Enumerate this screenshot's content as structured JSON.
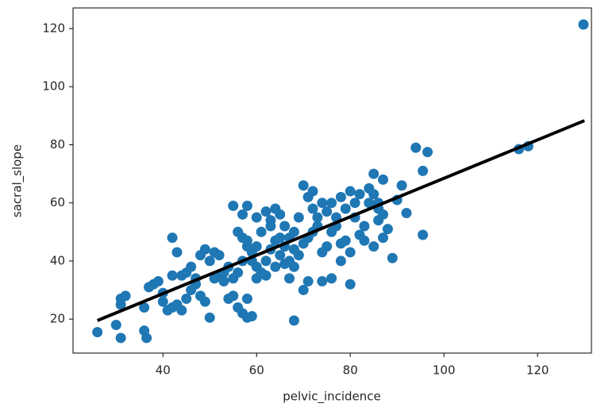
{
  "chart_data": {
    "type": "scatter",
    "xlabel": "pelvic_incidence",
    "ylabel": "sacral_slope",
    "xlim": [
      20.8,
      131.5
    ],
    "ylim": [
      8.3,
      127.1
    ],
    "xticks": [
      40,
      60,
      80,
      100,
      120
    ],
    "yticks": [
      20,
      40,
      60,
      80,
      100,
      120
    ],
    "series": [
      {
        "color": "#1f77b4",
        "x": [
          129.8,
          116,
          118,
          94,
          96.5,
          95.5,
          95.5,
          89,
          92,
          90,
          91,
          87,
          85,
          84,
          86,
          85,
          83,
          88,
          87,
          86,
          82,
          81,
          80,
          79,
          78,
          77,
          76,
          78,
          80,
          80,
          78,
          75,
          74,
          73,
          72,
          71,
          70,
          72,
          74,
          69,
          68,
          67,
          66,
          65,
          64,
          63,
          62,
          61,
          60,
          59,
          58,
          57,
          56,
          55,
          58,
          57,
          60,
          63,
          65,
          66,
          68,
          70,
          71,
          72,
          73,
          75,
          76,
          77,
          79,
          82,
          83,
          84,
          85,
          86,
          87,
          81,
          74,
          76,
          71,
          70,
          68,
          67,
          64,
          62,
          60,
          58,
          57,
          58,
          56,
          55,
          54,
          53,
          52,
          51,
          50,
          49,
          48,
          47,
          46,
          45,
          44,
          43,
          42,
          41,
          40,
          39,
          38,
          37,
          36,
          36.5,
          36,
          31,
          30,
          26,
          31,
          31,
          32,
          40,
          42,
          44,
          43,
          42,
          45,
          46,
          47,
          48,
          49,
          50,
          51,
          52,
          53,
          54,
          55,
          56,
          57,
          58,
          59,
          60,
          61,
          62,
          63,
          64,
          65,
          66,
          67,
          68,
          69,
          59
        ],
        "values": [
          121.4,
          78.5,
          79.5,
          79,
          77.5,
          71,
          49,
          41,
          56.5,
          61,
          66,
          68,
          70,
          65,
          54,
          45,
          47,
          51,
          48,
          58,
          63,
          60,
          64,
          58,
          62,
          55,
          50,
          46,
          43,
          32,
          40,
          45,
          43,
          52,
          58,
          62,
          66,
          64,
          60,
          55,
          50,
          48,
          52,
          56,
          58,
          54,
          57,
          50,
          45,
          43,
          47,
          48,
          50,
          59,
          59,
          56,
          55,
          52,
          42,
          45,
          44,
          46,
          48,
          50,
          55,
          57,
          60,
          52,
          47,
          49,
          52,
          60,
          63,
          60,
          56,
          55,
          33,
          34,
          33,
          30,
          19.5,
          34,
          38,
          35,
          34,
          27,
          22,
          20.5,
          24,
          28,
          27,
          33,
          35,
          34,
          20.5,
          26,
          28,
          32,
          30,
          27,
          23,
          25,
          24,
          23,
          26,
          33,
          32,
          31,
          24,
          13.5,
          16,
          13.5,
          18,
          15.5,
          27,
          25,
          28,
          29,
          35,
          35,
          43,
          48,
          36,
          38,
          34,
          42,
          44,
          40,
          43,
          42,
          36,
          38,
          34,
          36,
          40,
          45,
          40,
          38,
          36,
          40,
          44,
          47,
          48,
          39,
          40,
          38,
          42,
          21
        ]
      },
      {
        "type": "line",
        "color": "#000000",
        "x": [
          26,
          130
        ],
        "values": [
          19.5,
          88.3
        ]
      }
    ]
  }
}
